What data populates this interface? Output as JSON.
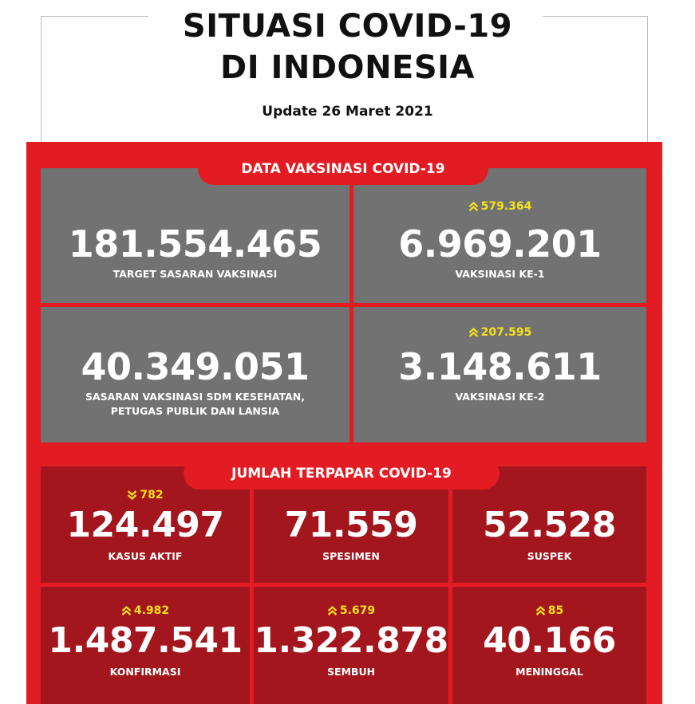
{
  "header": {
    "title_line1": "SITUASI COVID-19",
    "title_line2": "DI INDONESIA",
    "update": "Update 26 Maret 2021"
  },
  "vaksinasi": {
    "title": "DATA VAKSINASI COVID-19",
    "target": {
      "value": "181.554.465",
      "label": "TARGET SASARAN VAKSINASI"
    },
    "ke1": {
      "value": "6.969.201",
      "label": "VAKSINASI KE-1",
      "delta": "579.364",
      "direction": "up"
    },
    "sasaran": {
      "value": "40.349.051",
      "label_line1": "SASARAN VAKSINASI SDM KESEHATAN,",
      "label_line2": "PETUGAS PUBLIK DAN LANSIA"
    },
    "ke2": {
      "value": "3.148.611",
      "label": "VAKSINASI KE-2",
      "delta": "207.595",
      "direction": "up"
    }
  },
  "terpapar": {
    "title": "JUMLAH TERPAPAR COVID-19",
    "kasus_aktif": {
      "value": "124.497",
      "label": "KASUS AKTIF",
      "delta": "782",
      "direction": "down"
    },
    "spesimen": {
      "value": "71.559",
      "label": "SPESIMEN"
    },
    "suspek": {
      "value": "52.528",
      "label": "SUSPEK"
    },
    "konfirmasi": {
      "value": "1.487.541",
      "label": "KONFIRMASI",
      "delta": "4.982",
      "direction": "up"
    },
    "sembuh": {
      "value": "1.322.878",
      "label": "SEMBUH",
      "delta": "5.679",
      "direction": "up"
    },
    "meninggal": {
      "value": "40.166",
      "label": "MENINGGAL",
      "delta": "85",
      "direction": "up"
    }
  },
  "colors": {
    "red": "#e31b23",
    "dark_red": "#a3161d",
    "grey": "#727272",
    "yellow": "#f6e11b"
  }
}
